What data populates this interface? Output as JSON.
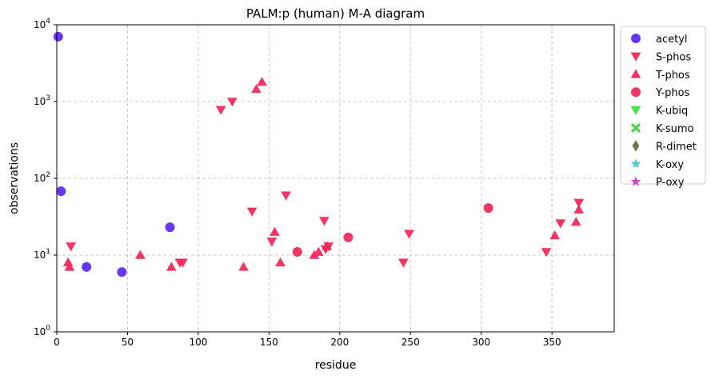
{
  "chart_data": {
    "type": "scatter",
    "title": "PALM:p (human) M-A diagram",
    "xlabel": "residue",
    "ylabel": "observations",
    "xlim": [
      0,
      394
    ],
    "ylim": [
      1,
      10000
    ],
    "yscale": "log",
    "grid": true,
    "legend_position": "outside-right",
    "x_ticks": [
      0,
      50,
      100,
      150,
      200,
      250,
      300,
      350
    ],
    "y_ticks": [
      {
        "value": 1,
        "base": "10",
        "exp": "0"
      },
      {
        "value": 10,
        "base": "10",
        "exp": "1"
      },
      {
        "value": 100,
        "base": "10",
        "exp": "2"
      },
      {
        "value": 1000,
        "base": "10",
        "exp": "3"
      },
      {
        "value": 10000,
        "base": "10",
        "exp": "4"
      }
    ],
    "series": [
      {
        "name": "acetyl",
        "marker": "circle",
        "color": "#5c2ef0",
        "points": [
          [
            1,
            7000
          ],
          [
            3,
            68
          ],
          [
            21,
            7
          ],
          [
            46,
            6
          ],
          [
            80,
            23
          ]
        ]
      },
      {
        "name": "S-phos",
        "marker": "triangle-down",
        "color": "#f02a5c",
        "points": [
          [
            10,
            13
          ],
          [
            87,
            8
          ],
          [
            89,
            8
          ],
          [
            116,
            780
          ],
          [
            124,
            1000
          ],
          [
            138,
            37
          ],
          [
            152,
            15
          ],
          [
            162,
            60
          ],
          [
            189,
            28
          ],
          [
            190,
            12
          ],
          [
            192,
            13
          ],
          [
            245,
            8
          ],
          [
            249,
            19
          ],
          [
            346,
            11
          ],
          [
            356,
            26
          ],
          [
            369,
            48
          ]
        ]
      },
      {
        "name": "T-phos",
        "marker": "triangle-up",
        "color": "#f02a5c",
        "points": [
          [
            8,
            8
          ],
          [
            9,
            7
          ],
          [
            59,
            10
          ],
          [
            81,
            7
          ],
          [
            132,
            7
          ],
          [
            141,
            1450
          ],
          [
            145,
            1800
          ],
          [
            154,
            20
          ],
          [
            158,
            8
          ],
          [
            182,
            10
          ],
          [
            185,
            11
          ],
          [
            191,
            13
          ],
          [
            352,
            18
          ],
          [
            367,
            27
          ],
          [
            369,
            39
          ]
        ]
      },
      {
        "name": "Y-phos",
        "marker": "circle",
        "color": "#f02a5c",
        "points": [
          [
            170,
            11
          ],
          [
            206,
            17
          ],
          [
            305,
            41
          ]
        ]
      },
      {
        "name": "K-ubiq",
        "marker": "triangle-down",
        "color": "#3de03d",
        "points": []
      },
      {
        "name": "K-sumo",
        "marker": "x-filled",
        "color": "#3dcc3d",
        "points": []
      },
      {
        "name": "R-dimet",
        "marker": "diamond",
        "color": "#6b6b45",
        "points": []
      },
      {
        "name": "K-oxy",
        "marker": "star",
        "color": "#3dcccc",
        "points": []
      },
      {
        "name": "P-oxy",
        "marker": "star",
        "color": "#cc3dcc",
        "points": []
      }
    ]
  }
}
